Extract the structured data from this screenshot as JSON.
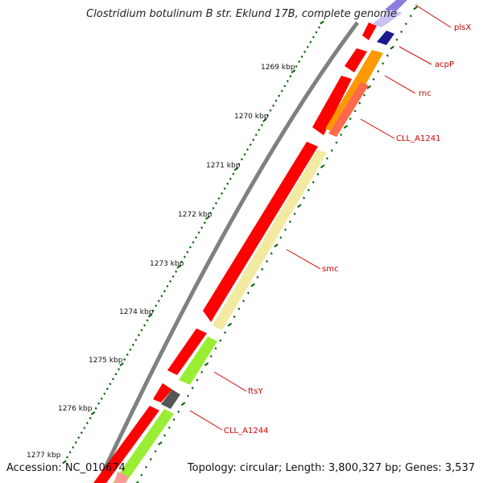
{
  "title": "Clostridium botulinum B str. Eklund 17B, complete genome",
  "footer": {
    "accession": "Accession: NC_010674",
    "summary": "Topology: circular; Length: 3,800,327 bp; Genes: 3,537"
  },
  "colors": {
    "backbone": "#808080",
    "tick": "#006400",
    "forward_cds": "#ff0000",
    "label": "#cc0000"
  },
  "kbp_ticks": [
    "1269 kbp",
    "1270 kbp",
    "1271 kbp",
    "1272 kbp",
    "1273 kbp",
    "1274 kbp",
    "1275 kbp",
    "1276 kbp",
    "1277 kbp"
  ],
  "gene_labels": [
    {
      "name": "plsX",
      "color": "#8a7fe0"
    },
    {
      "name": "acpP",
      "color": "#1a1a8c"
    },
    {
      "name": "rnc",
      "color": "#ff9900"
    },
    {
      "name": "CLL_A1241",
      "color": "#ff6a4a"
    },
    {
      "name": "smc",
      "color": "#f2eaa0"
    },
    {
      "name": "ftsY",
      "color": "#99ee33"
    },
    {
      "name": "CLL_A1244",
      "color": "#555555"
    }
  ]
}
